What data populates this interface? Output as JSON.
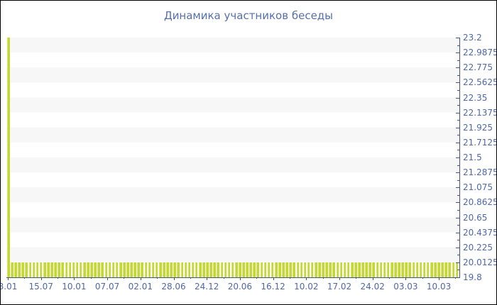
{
  "title": "Динамика участников беседы",
  "colors": {
    "bar": "#c4d833",
    "bar_highlight": "#d9e76e",
    "axis": "#45547a",
    "text": "#4e68a8",
    "title_text": "#5570ad",
    "stripe": "#f7f7f7",
    "background": "#ffffff",
    "frame_border": "#000000"
  },
  "chart_data": {
    "type": "bar",
    "title": "Динамика участников беседы",
    "xlabel": "",
    "ylabel": "",
    "ylim": [
      19.8,
      23.2
    ],
    "y_tick_step": 0.2125,
    "grid": "horizontal-stripes",
    "legend": "none",
    "y_axis_side": "right",
    "y_tick_labels": [
      "23.2",
      "22.9875",
      "22.775",
      "22.5625",
      "22.35",
      "22.1375",
      "21.925",
      "21.7125",
      "21.5",
      "21.2875",
      "21.075",
      "20.8625",
      "20.65",
      "20.4375",
      "20.225",
      "20.0125",
      "19.8"
    ],
    "x_tick_labels": [
      "8.01",
      "15.07",
      "10.01",
      "07.07",
      "02.01",
      "28.06",
      "24.12",
      "20.06",
      "16.12",
      "10.02",
      "17.02",
      "24.02",
      "03.03",
      "10.03"
    ],
    "values": [
      23,
      20,
      20,
      20,
      20,
      20,
      20,
      20,
      20,
      20,
      20,
      20,
      20,
      20,
      20,
      20,
      20,
      20,
      20,
      20,
      20,
      20,
      20,
      20,
      20,
      20,
      20,
      20,
      20,
      20,
      20,
      20,
      20,
      20,
      20,
      20,
      20,
      20,
      20,
      20,
      20,
      20,
      20,
      20,
      20,
      20,
      20,
      20,
      20,
      20,
      20,
      20,
      20,
      20,
      20,
      20,
      20,
      20,
      20,
      20,
      20,
      20,
      20,
      20,
      20,
      20,
      20,
      20,
      20,
      20,
      20,
      20,
      20,
      20,
      20,
      20,
      20,
      20,
      20,
      20,
      20,
      20,
      20,
      20,
      20,
      20,
      20,
      20,
      20,
      20,
      20,
      20,
      20,
      20,
      20,
      20,
      20,
      20,
      20,
      20,
      20,
      20,
      20,
      20,
      20,
      20,
      20,
      20,
      20,
      20,
      20,
      20,
      20,
      20,
      20,
      20,
      20,
      20,
      20,
      20,
      20,
      20,
      20,
      20,
      20
    ]
  }
}
